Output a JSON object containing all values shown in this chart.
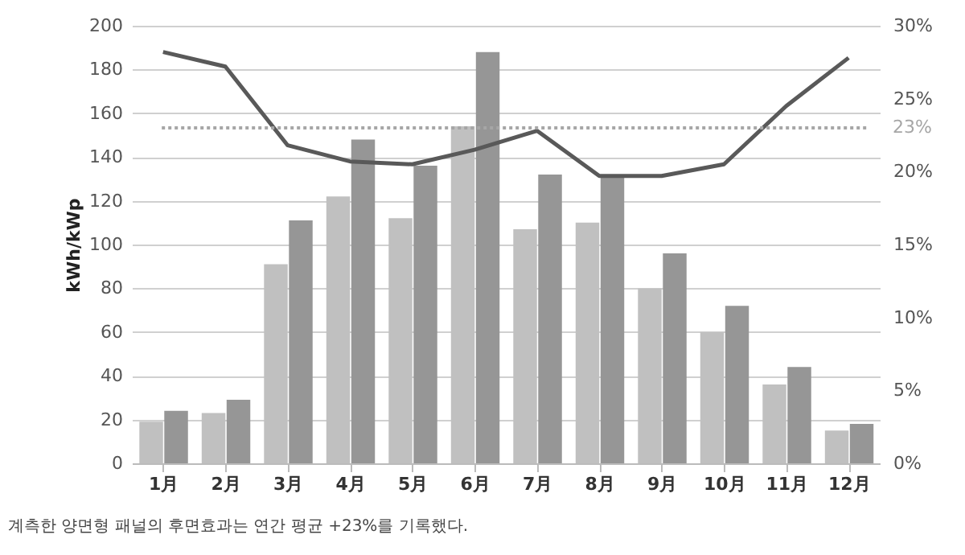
{
  "chart_data": {
    "type": "bar",
    "ylabel": "kWh/kWp",
    "categories": [
      "1月",
      "2月",
      "3月",
      "4月",
      "5月",
      "6月",
      "7月",
      "8月",
      "9月",
      "10月",
      "11月",
      "12月"
    ],
    "series": [
      {
        "color": "#c0c0c0",
        "values": [
          19,
          23,
          91,
          122,
          112,
          154,
          107,
          110,
          80,
          60,
          36,
          15
        ]
      },
      {
        "color": "#969696",
        "values": [
          24,
          29,
          111,
          148,
          136,
          188,
          132,
          132,
          96,
          72,
          44,
          18
        ]
      },
      {
        "type": "line",
        "axis": "y2",
        "color": "#595959",
        "values": [
          28.2,
          27.2,
          21.8,
          20.7,
          20.5,
          21.5,
          22.8,
          19.7,
          19.7,
          20.5,
          24.5,
          27.8
        ]
      }
    ],
    "ylim": [
      0,
      200
    ],
    "yticks": [
      0,
      20,
      40,
      60,
      80,
      100,
      120,
      140,
      160,
      180,
      200
    ],
    "y2lim": [
      0,
      30
    ],
    "y2ticks": [
      {
        "value": 0,
        "label": "0%"
      },
      {
        "value": 5,
        "label": "5%"
      },
      {
        "value": 10,
        "label": "10%"
      },
      {
        "value": 15,
        "label": "15%"
      },
      {
        "value": 20,
        "label": "20%"
      },
      {
        "value": 25,
        "label": "25%"
      },
      {
        "value": 30,
        "label": "30%"
      }
    ],
    "ref_lines": [
      {
        "axis": "y2",
        "value": 23,
        "label": "23%",
        "color": "#a6a6a6",
        "line_style": "dotted"
      }
    ],
    "grid": "y",
    "line_style": "solid",
    "marker": "none",
    "annotations": [
      "계측한 양면형 패널의 후면효과는 연간 평균 +23%를 기록했다."
    ]
  }
}
